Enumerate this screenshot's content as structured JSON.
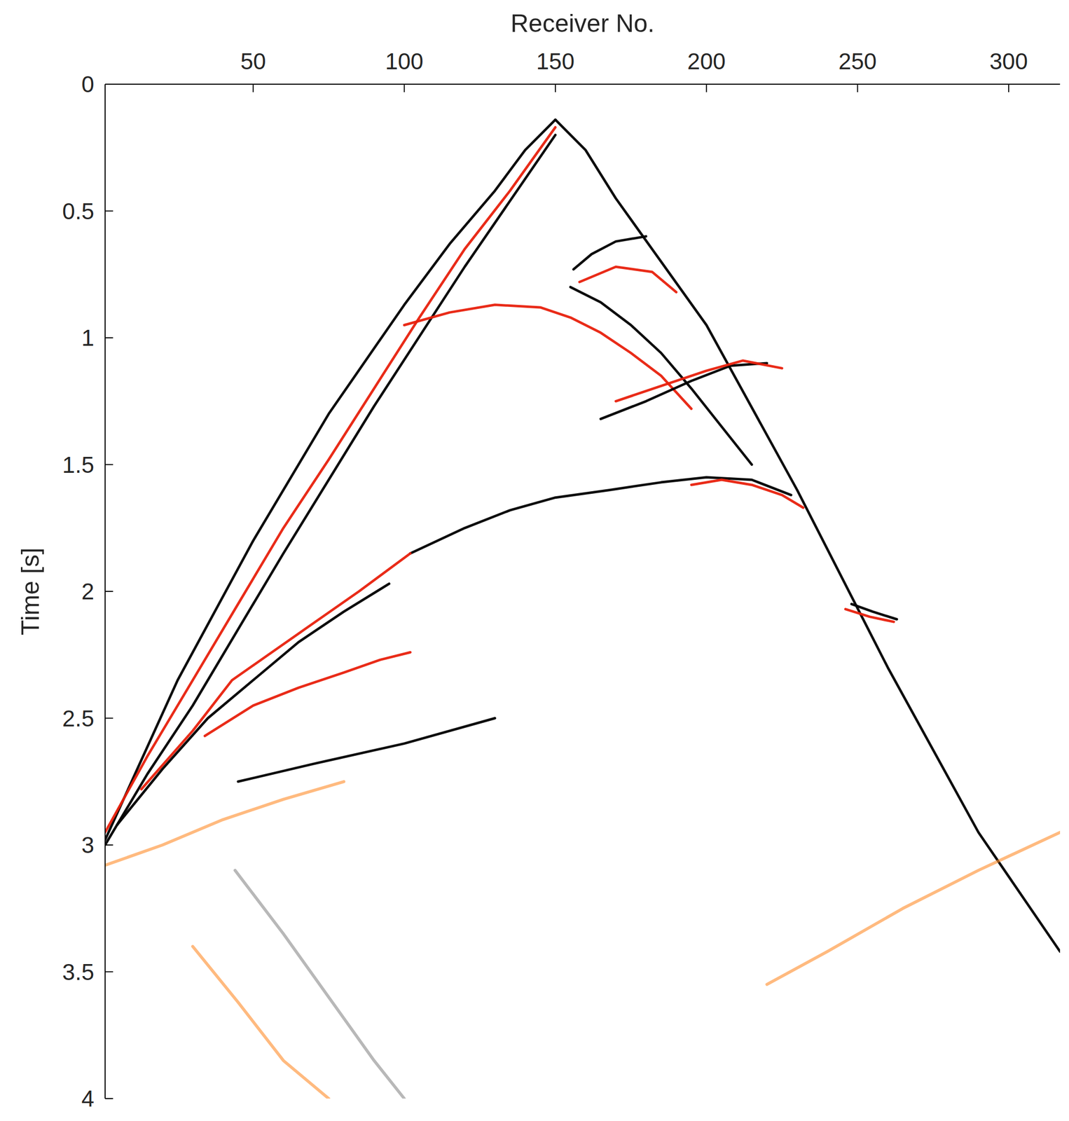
{
  "chart_data": {
    "type": "seismic",
    "x_label": "Receiver No.",
    "y_label": "Time [s]",
    "xlim": [
      1,
      317
    ],
    "ylim": [
      0,
      4
    ],
    "xticks": [
      50,
      100,
      150,
      200,
      250,
      300
    ],
    "yticks": [
      0,
      0.5,
      1,
      1.5,
      2,
      2.5,
      3,
      3.5,
      4
    ],
    "series": [
      {
        "color": "#000000",
        "x": [
          150,
          140,
          130,
          115,
          100,
          75,
          50,
          25,
          1
        ],
        "values": [
          0.14,
          0.26,
          0.42,
          0.63,
          0.87,
          1.3,
          1.8,
          2.35,
          2.98
        ]
      },
      {
        "color": "#000000",
        "x": [
          150,
          160,
          170,
          185,
          200,
          230,
          260,
          290,
          317
        ],
        "values": [
          0.14,
          0.26,
          0.45,
          0.7,
          0.95,
          1.6,
          2.3,
          2.95,
          3.42
        ]
      },
      {
        "color": "#e8200c",
        "x": [
          150,
          135,
          120,
          105,
          90,
          75,
          60,
          45,
          30,
          15,
          1
        ],
        "values": [
          0.17,
          0.42,
          0.65,
          0.92,
          1.2,
          1.48,
          1.75,
          2.05,
          2.35,
          2.65,
          2.95
        ]
      },
      {
        "color": "#000000",
        "x": [
          150,
          120,
          90,
          60,
          45,
          30,
          15,
          1
        ],
        "values": [
          0.2,
          0.72,
          1.27,
          1.85,
          2.15,
          2.45,
          2.72,
          3.0
        ]
      },
      {
        "color": "#e8200c",
        "x": [
          100,
          115,
          130,
          145,
          155,
          165,
          175,
          185,
          195
        ],
        "values": [
          0.95,
          0.9,
          0.87,
          0.88,
          0.92,
          0.98,
          1.06,
          1.15,
          1.28
        ]
      },
      {
        "color": "#000000",
        "x": [
          155,
          165,
          175,
          185,
          195,
          205,
          215
        ],
        "values": [
          0.8,
          0.86,
          0.95,
          1.06,
          1.2,
          1.35,
          1.5
        ]
      },
      {
        "color": "#000000",
        "x": [
          156,
          162,
          170,
          180
        ],
        "values": [
          0.73,
          0.67,
          0.62,
          0.6
        ]
      },
      {
        "color": "#e8200c",
        "x": [
          158,
          170,
          182,
          190
        ],
        "values": [
          0.78,
          0.72,
          0.74,
          0.82
        ]
      },
      {
        "color": "#000000",
        "x": [
          165,
          180,
          195,
          208,
          220
        ],
        "values": [
          1.32,
          1.25,
          1.17,
          1.11,
          1.1
        ]
      },
      {
        "color": "#e8200c",
        "x": [
          170,
          185,
          200,
          212,
          225
        ],
        "values": [
          1.25,
          1.19,
          1.13,
          1.09,
          1.12
        ]
      },
      {
        "color": "#000000",
        "x": [
          102,
          120,
          135,
          150,
          168,
          185,
          200,
          215,
          228
        ],
        "values": [
          1.85,
          1.75,
          1.68,
          1.63,
          1.6,
          1.57,
          1.55,
          1.56,
          1.62
        ]
      },
      {
        "color": "#e8200c",
        "x": [
          195,
          205,
          215,
          225,
          232
        ],
        "values": [
          1.58,
          1.56,
          1.58,
          1.62,
          1.67
        ]
      },
      {
        "color": "#e8200c",
        "x": [
          13,
          30,
          43,
          55,
          67,
          85,
          102
        ],
        "values": [
          2.78,
          2.55,
          2.35,
          2.25,
          2.15,
          2.0,
          1.85
        ]
      },
      {
        "color": "#000000",
        "x": [
          5,
          20,
          35,
          50,
          65,
          80,
          95
        ],
        "values": [
          2.92,
          2.7,
          2.5,
          2.35,
          2.2,
          2.08,
          1.97
        ]
      },
      {
        "color": "#e8200c",
        "x": [
          34,
          50,
          65,
          80,
          92,
          102
        ],
        "values": [
          2.57,
          2.45,
          2.38,
          2.32,
          2.27,
          2.24
        ]
      },
      {
        "color": "#000000",
        "x": [
          45,
          70,
          100,
          130
        ],
        "values": [
          2.75,
          2.68,
          2.6,
          2.5
        ]
      },
      {
        "color": "#000000",
        "x": [
          248,
          255,
          263
        ],
        "values": [
          2.05,
          2.08,
          2.11
        ]
      },
      {
        "color": "#e8200c",
        "x": [
          246,
          254,
          262
        ],
        "values": [
          2.07,
          2.1,
          2.12
        ]
      },
      {
        "color": "#ff8c2a",
        "x": [
          1,
          20,
          40,
          60,
          80
        ],
        "values": [
          3.08,
          3.0,
          2.9,
          2.82,
          2.75
        ]
      },
      {
        "color": "#888888",
        "x": [
          44,
          60,
          75,
          90,
          100
        ],
        "values": [
          3.1,
          3.35,
          3.6,
          3.85,
          4.0
        ]
      },
      {
        "color": "#ff8c2a",
        "x": [
          30,
          45,
          60,
          75
        ],
        "values": [
          3.4,
          3.62,
          3.85,
          4.0
        ]
      },
      {
        "color": "#ff8c2a",
        "x": [
          317,
          290,
          265,
          240,
          220
        ],
        "values": [
          2.95,
          3.1,
          3.25,
          3.42,
          3.55
        ]
      }
    ]
  }
}
